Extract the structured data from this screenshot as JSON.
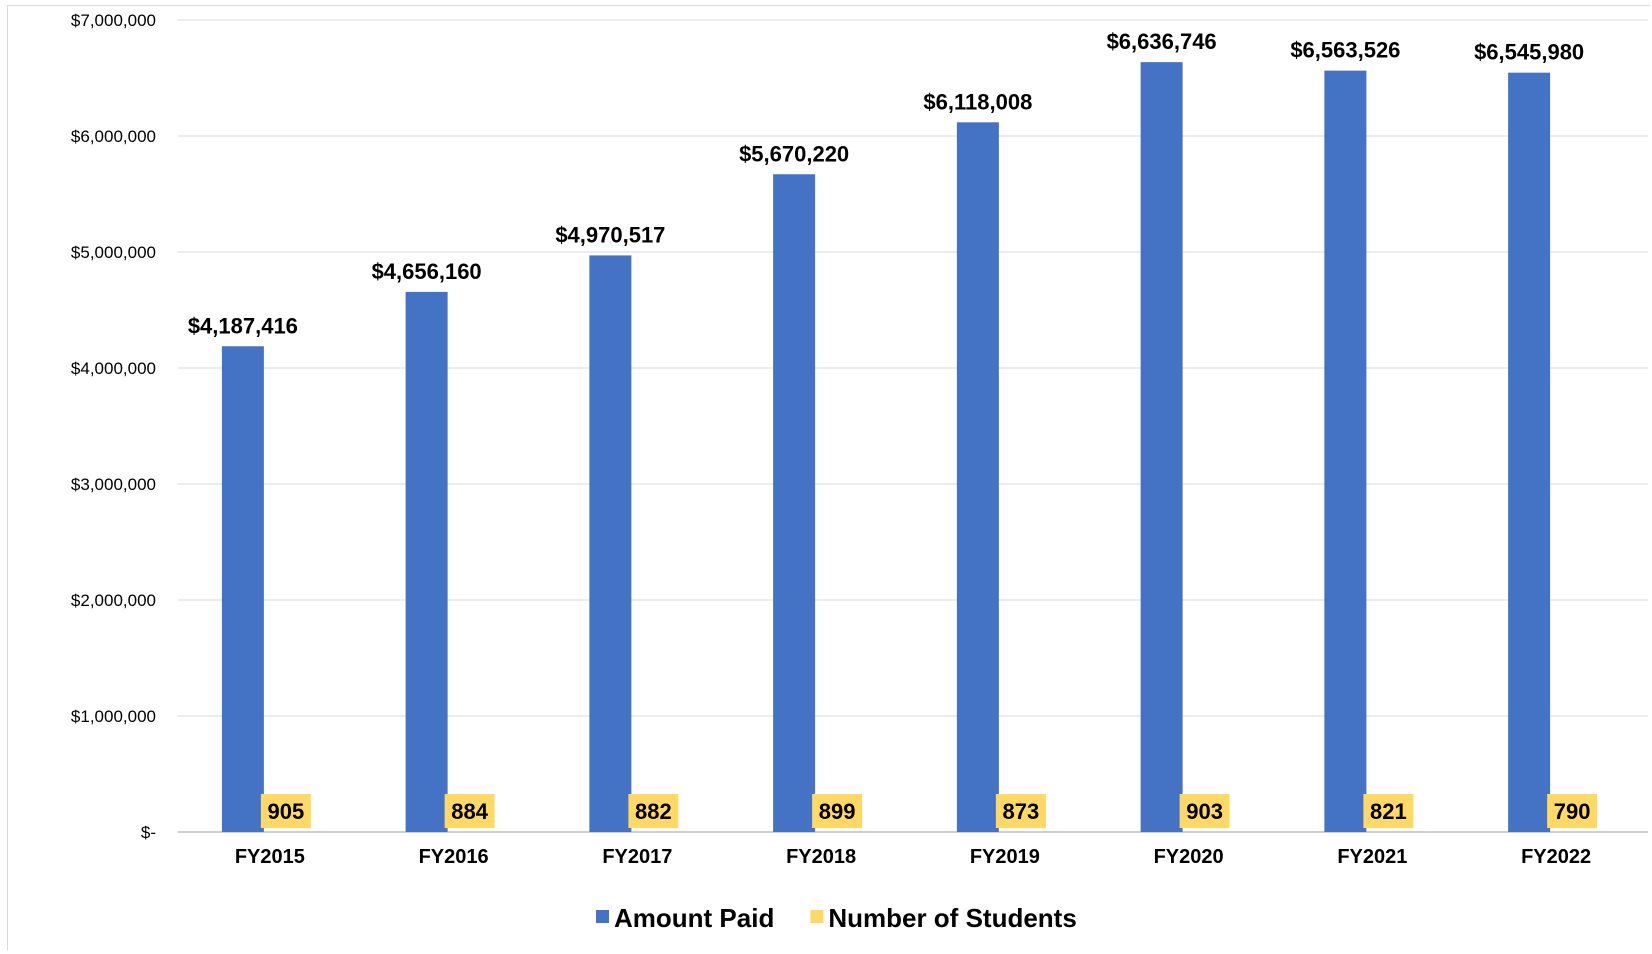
{
  "chart_data": {
    "type": "bar",
    "title": "",
    "xlabel": "",
    "ylabel": "",
    "categories": [
      "FY2015",
      "FY2016",
      "FY2017",
      "FY2018",
      "FY2019",
      "FY2020",
      "FY2021",
      "FY2022"
    ],
    "ylim": [
      0,
      7000000
    ],
    "y_ticks": [
      {
        "value": 0,
        "label": "$-"
      },
      {
        "value": 1000000,
        "label": "$1,000,000"
      },
      {
        "value": 2000000,
        "label": "$2,000,000"
      },
      {
        "value": 3000000,
        "label": "$3,000,000"
      },
      {
        "value": 4000000,
        "label": "$4,000,000"
      },
      {
        "value": 5000000,
        "label": "$5,000,000"
      },
      {
        "value": 6000000,
        "label": "$6,000,000"
      },
      {
        "value": 7000000,
        "label": "$7,000,000"
      }
    ],
    "grid": true,
    "legend_position": "bottom",
    "series": [
      {
        "name": "Amount Paid",
        "color": "#4472c4",
        "values": [
          4187416,
          4656160,
          4970517,
          5670220,
          6118008,
          6636746,
          6563526,
          6545980
        ],
        "labels": [
          "$4,187,416",
          "$4,656,160",
          "$4,970,517",
          "$5,670,220",
          "$6,118,008",
          "$6,636,746",
          "$6,563,526",
          "$6,545,980"
        ]
      },
      {
        "name": "Number of Students",
        "color": "#ffd966",
        "values": [
          905,
          884,
          882,
          899,
          873,
          903,
          821,
          790
        ],
        "labels": [
          "905",
          "884",
          "882",
          "899",
          "873",
          "903",
          "821",
          "790"
        ]
      }
    ]
  }
}
